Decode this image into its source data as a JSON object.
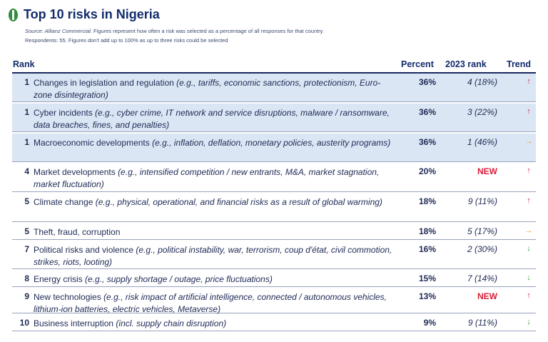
{
  "title": "Top 10 risks in Nigeria",
  "source_label": "Source: Allianz Commercial.",
  "source_text": " Figures represent how often a risk was selected as a percentage of all responses for that country.",
  "respondents_text": "Respondents: 55. Figures don't add up to 100% as up to three risks could be selected",
  "columns": {
    "rank": "Rank",
    "percent": "Percent",
    "prev_rank": "2023 rank",
    "trend": "Trend"
  },
  "rows": [
    {
      "rank": "1",
      "name": "Changes in legislation and regulation ",
      "examples": "(e.g., tariffs, economic sanctions, protectionism, Euro-zone disintegration)",
      "percent": "36%",
      "prev": "4 (18%)",
      "trend": "↑",
      "trend_dir": "up"
    },
    {
      "rank": "1",
      "name": "Cyber incidents ",
      "examples": "(e.g., cyber crime, IT network and service disruptions, malware / ransomware, data breaches, fines, and penalties)",
      "percent": "36%",
      "prev": "3 (22%)",
      "trend": "↑",
      "trend_dir": "up"
    },
    {
      "rank": "1",
      "name": "Macroeconomic developments ",
      "examples": "(e.g., inflation, deflation, monetary policies, austerity programs)",
      "percent": "36%",
      "prev": "1 (46%)",
      "trend": "→",
      "trend_dir": "same"
    },
    {
      "rank": "4",
      "name": "Market developments ",
      "examples": "(e.g., intensified competition / new entrants, M&A, market stagnation, market fluctuation)",
      "percent": "20%",
      "prev": "NEW",
      "trend": "↑",
      "trend_dir": "up"
    },
    {
      "rank": "5",
      "name": "Climate change ",
      "examples": "(e.g., physical, operational, and financial risks as a result of global warming)",
      "percent": "18%",
      "prev": "9 (11%)",
      "trend": "↑",
      "trend_dir": "up"
    },
    {
      "rank": "5",
      "name": "Theft, fraud, corruption",
      "examples": "",
      "percent": "18%",
      "prev": "5 (17%)",
      "trend": "→",
      "trend_dir": "same"
    },
    {
      "rank": "7",
      "name": "Political risks and violence ",
      "examples": "(e.g., political instability, war, terrorism, coup d'état, civil commotion, strikes, riots, looting)",
      "percent": "16%",
      "prev": "2 (30%)",
      "trend": "↓",
      "trend_dir": "down"
    },
    {
      "rank": "8",
      "name": "Energy crisis ",
      "examples": "(e.g., supply shortage / outage, price fluctuations)",
      "percent": "15%",
      "prev": "7 (14%)",
      "trend": "↓",
      "trend_dir": "down"
    },
    {
      "rank": "9",
      "name": "New technologies ",
      "examples": "(e.g., risk impact of artificial intelligence, connected / autonomous vehicles, lithium-ion batteries, electric vehicles, Metaverse)",
      "percent": "13%",
      "prev": "NEW",
      "trend": "↑",
      "trend_dir": "up"
    },
    {
      "rank": "10",
      "name": "Business interruption ",
      "examples": "(incl. supply chain disruption)",
      "percent": "9%",
      "prev": "9 (11%)",
      "trend": "↓",
      "trend_dir": "down"
    }
  ]
}
